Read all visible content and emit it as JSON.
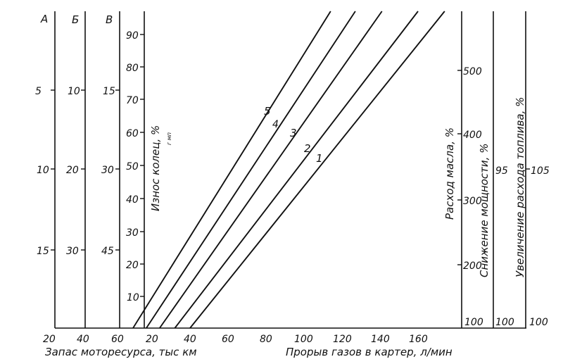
{
  "chart_data": {
    "type": "nomogram",
    "columns": [
      {
        "id": "A",
        "header": "А",
        "ticks": [
          "5",
          "10",
          "15"
        ]
      },
      {
        "id": "B",
        "header": "Б",
        "ticks": [
          "10",
          "20",
          "30"
        ]
      },
      {
        "id": "V",
        "header": "В",
        "ticks": [
          "15",
          "30",
          "45"
        ]
      }
    ],
    "wear_axis": {
      "label": "Износ колец, %",
      "sublabel": "г мп",
      "ticks": [
        "10",
        "20",
        "30",
        "40",
        "50",
        "60",
        "70",
        "80",
        "90"
      ]
    },
    "oil_axis": {
      "label": "Расход масла, %",
      "ticks": [
        "100",
        "200",
        "300",
        "400",
        "500"
      ]
    },
    "power_axis": {
      "label": "Снижение мощности, %",
      "ticks": [
        "100",
        "95"
      ]
    },
    "fuel_axis": {
      "label": "Увеличение расхода топлива, %",
      "ticks": [
        "100",
        "105"
      ]
    },
    "bottom_left_axis": {
      "label": "Запас моторесурса, тыс км",
      "ticks": [
        "20",
        "40",
        "60"
      ]
    },
    "bottom_main_axis": {
      "label": "Прорыв газов в картер, л/мин",
      "ticks": [
        "20",
        "40",
        "60",
        "80",
        "100",
        "120",
        "140",
        "160"
      ]
    },
    "lines": [
      {
        "label": "1",
        "x": [
          40,
          174
        ]
      },
      {
        "label": "2",
        "x": [
          32,
          160
        ]
      },
      {
        "label": "3",
        "x": [
          24,
          141
        ]
      },
      {
        "label": "4",
        "x": [
          17,
          127
        ]
      },
      {
        "label": "5",
        "x": [
          10,
          114
        ]
      }
    ]
  }
}
